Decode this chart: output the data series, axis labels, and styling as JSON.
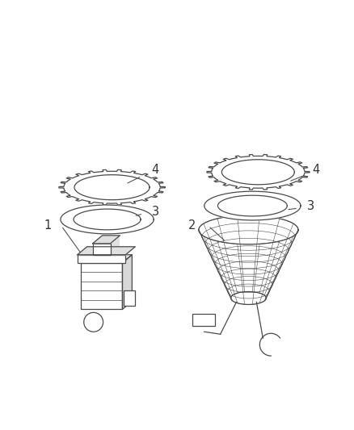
{
  "bg_color": "#ffffff",
  "line_color": "#4a4a4a",
  "label_color": "#333333",
  "fig_width": 4.38,
  "fig_height": 5.33,
  "dpi": 100
}
